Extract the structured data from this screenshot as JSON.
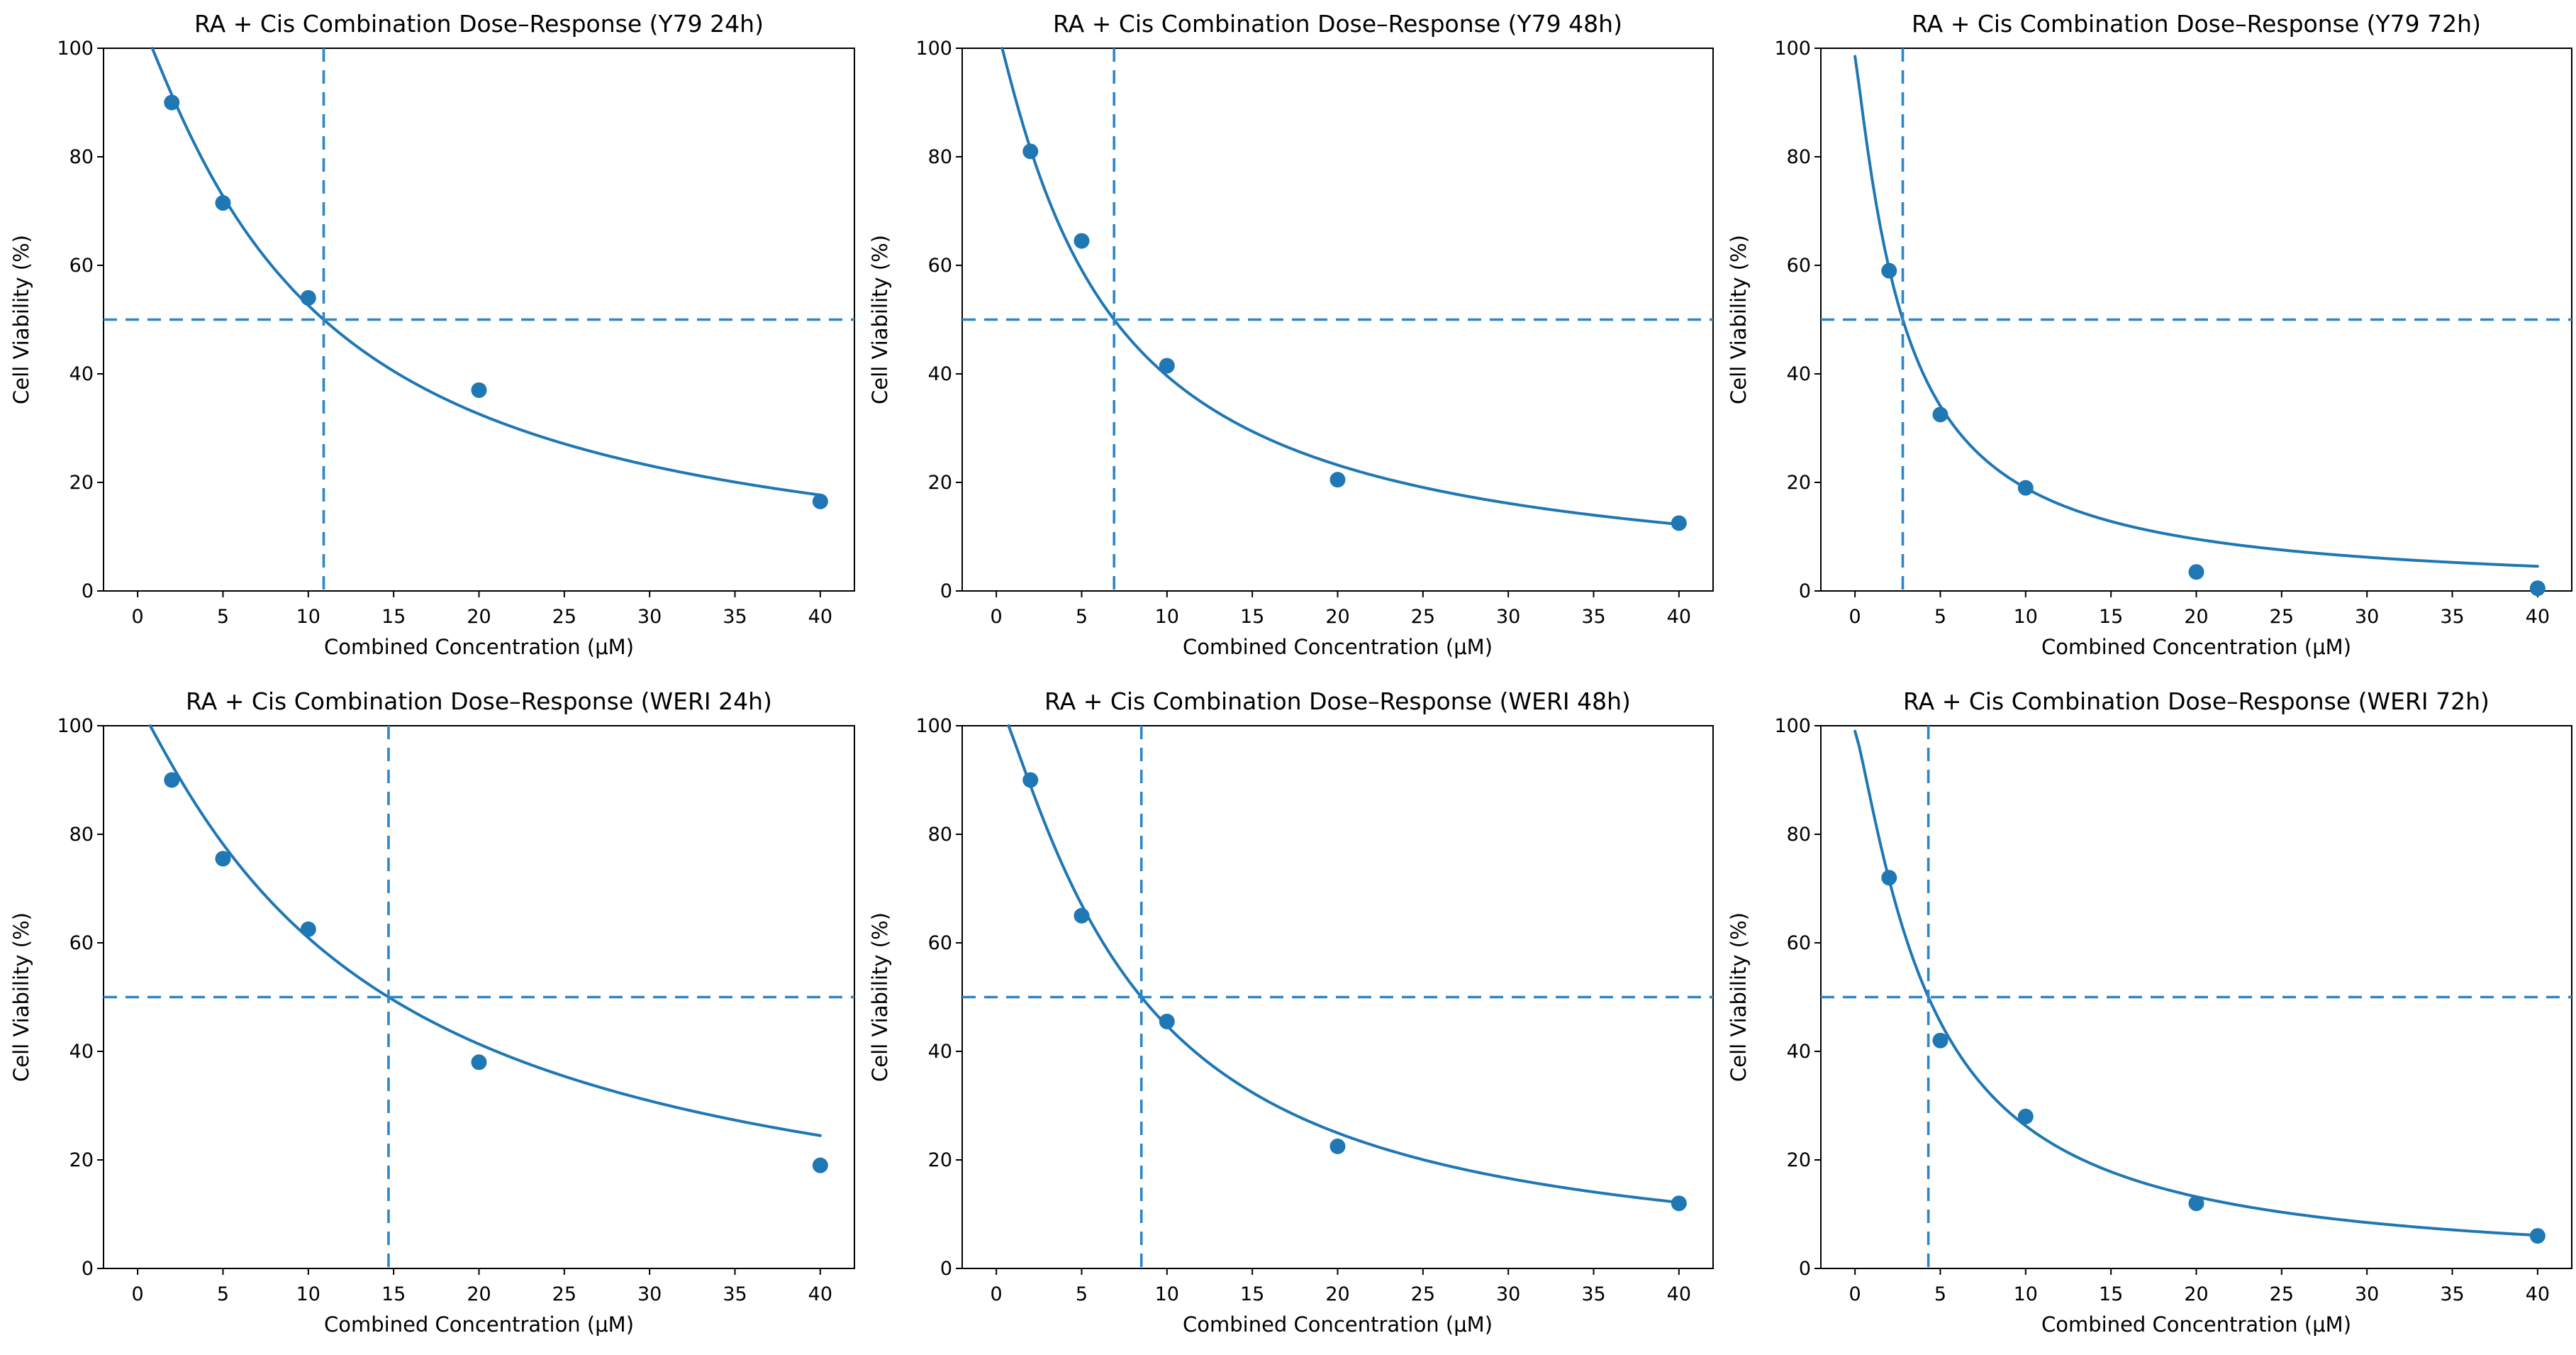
{
  "figure": {
    "background": "#ffffff",
    "accent_color": "#1f77b4",
    "dashed_color": "#2e86c9",
    "text_color": "#000000",
    "spine_color": "#000000",
    "xlabel": "Combined Concentration (μM)",
    "ylabel": "Cell Viability (%)",
    "x_ticks": [
      0,
      5,
      10,
      15,
      20,
      25,
      30,
      35,
      40
    ],
    "y_ticks": [
      0,
      20,
      40,
      60,
      80,
      100
    ],
    "xlim": [
      -2,
      42
    ],
    "ylim": [
      0,
      100
    ],
    "reference_viability": 50
  },
  "chart_data": [
    {
      "id": "y79-24h",
      "type": "scatter",
      "title": "RA + Cis Combination Dose–Response (Y79 24h)",
      "cell_line": "Y79",
      "timepoint": "24h",
      "xlabel": "Combined Concentration (μM)",
      "ylabel": "Cell Viability (%)",
      "x": [
        2,
        5,
        10,
        20,
        40
      ],
      "y": [
        90,
        71.5,
        54,
        37,
        16.5
      ],
      "ic50": 10.9,
      "reference_viability": 50,
      "fit": {
        "model": "hill",
        "top": 106,
        "hill_slope": 1.15
      }
    },
    {
      "id": "y79-48h",
      "type": "scatter",
      "title": "RA + Cis Combination Dose–Response (Y79 48h)",
      "cell_line": "Y79",
      "timepoint": "48h",
      "xlabel": "Combined Concentration (μM)",
      "ylabel": "Cell Viability (%)",
      "x": [
        2,
        5,
        10,
        20,
        40
      ],
      "y": [
        81,
        64.5,
        41.5,
        20.5,
        12.5
      ],
      "ic50": 6.9,
      "reference_viability": 50,
      "fit": {
        "model": "hill",
        "top": 104,
        "hill_slope": 1.1
      }
    },
    {
      "id": "y79-72h",
      "type": "scatter",
      "title": "RA + Cis Combination Dose–Response (Y79 72h)",
      "cell_line": "Y79",
      "timepoint": "72h",
      "xlabel": "Combined Concentration (μM)",
      "ylabel": "Cell Viability (%)",
      "x": [
        2,
        5,
        10,
        20,
        40
      ],
      "y": [
        59,
        32.5,
        19,
        3.5,
        0.5
      ],
      "ic50": 2.8,
      "reference_viability": 50,
      "fit": {
        "model": "hill",
        "top": 98.5,
        "hill_slope": 1.15
      }
    },
    {
      "id": "weri-24h",
      "type": "scatter",
      "title": "RA + Cis Combination Dose–Response (WERI 24h)",
      "cell_line": "WERI",
      "timepoint": "24h",
      "xlabel": "Combined Concentration (μM)",
      "ylabel": "Cell Viability (%)",
      "x": [
        2,
        5,
        10,
        20,
        40
      ],
      "y": [
        90,
        75.5,
        62.5,
        38,
        19
      ],
      "ic50": 14.7,
      "reference_viability": 50,
      "fit": {
        "model": "hill",
        "top": 104,
        "hill_slope": 1.1
      }
    },
    {
      "id": "weri-48h",
      "type": "scatter",
      "title": "RA + Cis Combination Dose–Response (WERI 48h)",
      "cell_line": "WERI",
      "timepoint": "48h",
      "xlabel": "Combined Concentration (μM)",
      "ylabel": "Cell Viability (%)",
      "x": [
        2,
        5,
        10,
        20,
        40
      ],
      "y": [
        90,
        65,
        45.5,
        22.5,
        12
      ],
      "ic50": 8.5,
      "reference_viability": 50,
      "fit": {
        "model": "hill",
        "top": 105,
        "hill_slope": 1.25
      }
    },
    {
      "id": "weri-72h",
      "type": "scatter",
      "title": "RA + Cis Combination Dose–Response (WERI 72h)",
      "cell_line": "WERI",
      "timepoint": "72h",
      "xlabel": "Combined Concentration (μM)",
      "ylabel": "Cell Viability (%)",
      "x": [
        2,
        5,
        10,
        20,
        40
      ],
      "y": [
        72,
        42,
        28,
        12,
        6
      ],
      "ic50": 4.3,
      "reference_viability": 50,
      "fit": {
        "model": "hill",
        "top": 99,
        "hill_slope": 1.23
      }
    }
  ]
}
